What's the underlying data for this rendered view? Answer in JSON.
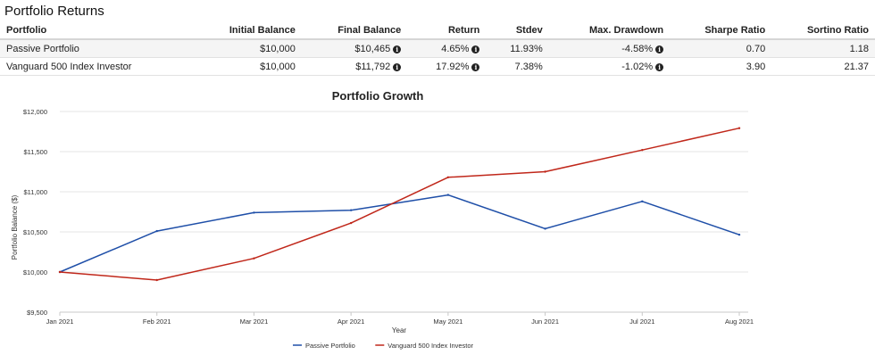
{
  "page": {
    "title": "Portfolio Returns"
  },
  "table": {
    "headers": [
      "Portfolio",
      "Initial Balance",
      "Final Balance",
      "Return",
      "Stdev",
      "Max. Drawdown",
      "Sharpe Ratio",
      "Sortino Ratio"
    ],
    "rows": [
      [
        "Passive Portfolio",
        "$10,000",
        "$10,465",
        "4.65%",
        "11.93%",
        "-4.58%",
        "0.70",
        "1.18"
      ],
      [
        "Vanguard 500 Index Investor",
        "$10,000",
        "$11,792",
        "17.92%",
        "7.38%",
        "-1.02%",
        "3.90",
        "21.37"
      ]
    ],
    "info_icon": "info-circle-icon"
  },
  "chart_data": {
    "type": "line",
    "title": "Portfolio Growth",
    "xlabel": "Year",
    "ylabel": "Portfolio Balance ($)",
    "categories": [
      "Jan 2021",
      "Feb 2021",
      "Mar 2021",
      "Apr 2021",
      "May 2021",
      "Jun 2021",
      "Jul 2021",
      "Aug 2021"
    ],
    "ylim": [
      9500,
      12000
    ],
    "yticks": [
      9500,
      10000,
      10500,
      11000,
      11500,
      12000
    ],
    "ytick_labels": [
      "$9,500",
      "$10,000",
      "$10,500",
      "$11,000",
      "$11,500",
      "$12,000"
    ],
    "grid": true,
    "legend_position": "bottom",
    "series": [
      {
        "name": "Passive Portfolio",
        "color": "#1f4fa8",
        "values": [
          10000,
          10510,
          10740,
          10770,
          10960,
          10540,
          10880,
          10465
        ]
      },
      {
        "name": "Vanguard 500 Index Investor",
        "color": "#c0271a",
        "values": [
          10000,
          9900,
          10170,
          10610,
          11180,
          11250,
          11520,
          11792
        ]
      }
    ]
  }
}
